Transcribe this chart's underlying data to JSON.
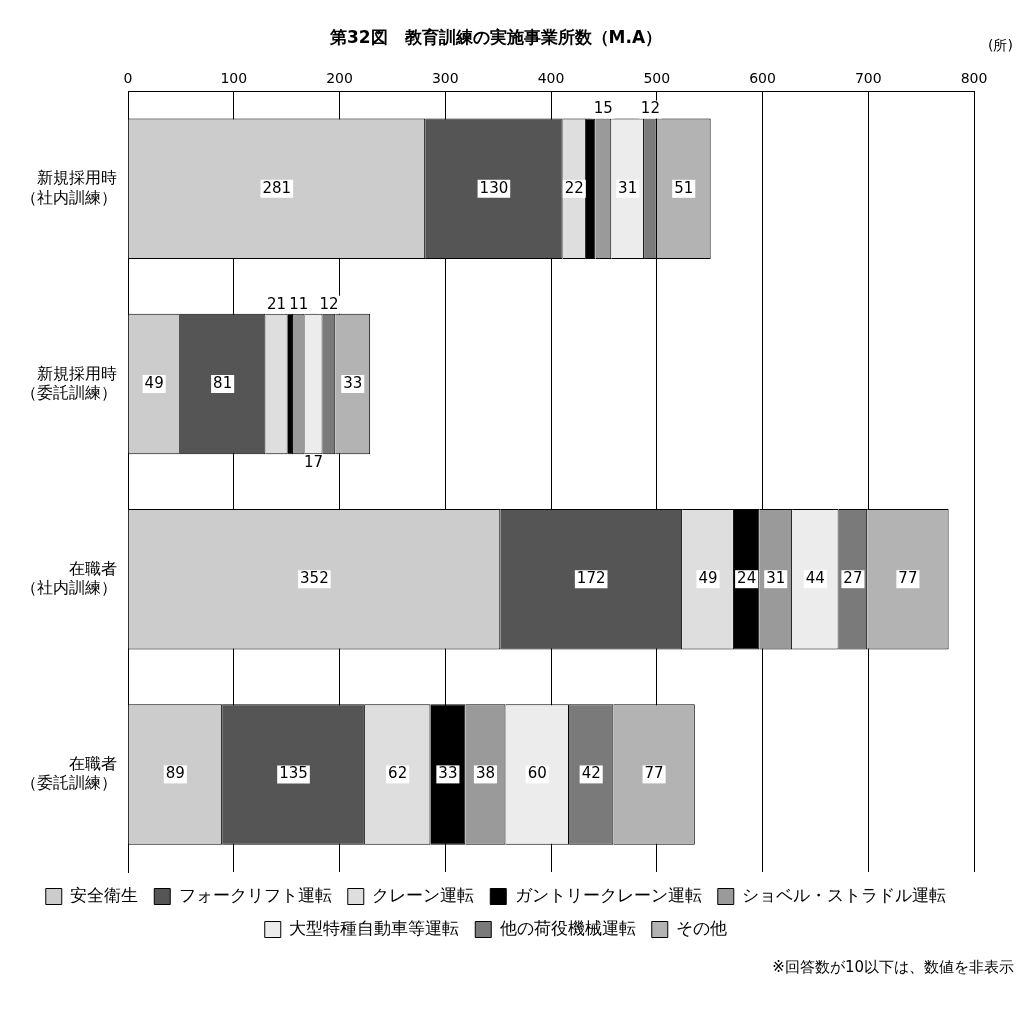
{
  "chart_data": {
    "type": "bar",
    "orientation": "horizontal",
    "stacked": true,
    "title": "第32図　教育訓練の実施事業所数（M.A）",
    "xlabel": "(所)",
    "categories": [
      "新規採用時（社内訓練）",
      "新規採用時（委託訓練）",
      "在職者（社内訓練）",
      "在職者（委託訓練）"
    ],
    "series": [
      {
        "name": "安全衛生",
        "color": "#cccccc",
        "values": [
          281,
          49,
          352,
          89
        ],
        "value_labels": [
          "281",
          "49",
          "352",
          "89"
        ]
      },
      {
        "name": "フォークリフト運転",
        "color": "#555555",
        "values": [
          130,
          81,
          172,
          135
        ],
        "value_labels": [
          "130",
          "81",
          "172",
          "135"
        ]
      },
      {
        "name": "クレーン運転",
        "color": "#dedede",
        "values": [
          22,
          21,
          49,
          62
        ],
        "value_labels": [
          "22",
          "21",
          "49",
          "62"
        ]
      },
      {
        "name": "ガントリークレーン運転",
        "color": "#000000",
        "values": [
          9,
          5,
          24,
          33
        ],
        "value_labels": [
          null,
          null,
          "24",
          "33"
        ]
      },
      {
        "name": "ショベル・ストラドル運転",
        "color": "#9a9a9a",
        "values": [
          15,
          11,
          31,
          38
        ],
        "value_labels": [
          "15",
          "11",
          "31",
          "38"
        ]
      },
      {
        "name": "大型特種自動車等運転",
        "color": "#ececec",
        "values": [
          31,
          17,
          44,
          60
        ],
        "value_labels": [
          "31",
          "17",
          "44",
          "60"
        ]
      },
      {
        "name": "他の荷役機械運転",
        "color": "#7a7a7a",
        "values": [
          12,
          12,
          27,
          42
        ],
        "value_labels": [
          "12",
          "12",
          "27",
          "42"
        ]
      },
      {
        "name": "その他",
        "color": "#b3b3b3",
        "values": [
          51,
          33,
          77,
          77
        ],
        "value_labels": [
          "51",
          "33",
          "77",
          "77"
        ]
      }
    ],
    "xlim": [
      0,
      800
    ],
    "xticks": [
      0,
      100,
      200,
      300,
      400,
      500,
      600,
      700,
      800
    ],
    "grid": "x",
    "legend": "bottom",
    "annotations": [
      "※回答数が10以下は、数値を非表示"
    ]
  }
}
